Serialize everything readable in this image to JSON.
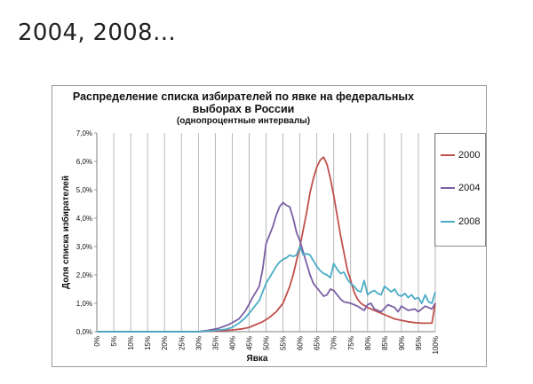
{
  "slide": {
    "title": "2004, 2008…"
  },
  "chart_data": {
    "type": "line",
    "title": "Распределение списка избирателей по явке на федеральных выборах в России",
    "title_line1": "Распределение списка избирателей по явке на федеральных",
    "title_line2": "выборах в России",
    "subtitle": "(однопроцентные интервалы)",
    "xlabel": "Явка",
    "ylabel": "Доля списка избирателей",
    "x_ticks": [
      "0%",
      "5%",
      "10%",
      "15%",
      "20%",
      "25%",
      "30%",
      "35%",
      "40%",
      "45%",
      "50%",
      "55%",
      "60%",
      "65%",
      "70%",
      "75%",
      "80%",
      "85%",
      "90%",
      "95%",
      "100%"
    ],
    "y_ticks": [
      "0,0%",
      "1,0%",
      "2,0%",
      "3,0%",
      "4,0%",
      "5,0%",
      "6,0%",
      "7,0%"
    ],
    "xlim": [
      0,
      100
    ],
    "ylim": [
      0,
      7
    ],
    "grid": "vertical",
    "legend_position": "right",
    "series": [
      {
        "name": "2000",
        "color": "#c0504d",
        "points": [
          [
            0,
            0
          ],
          [
            30,
            0
          ],
          [
            35,
            0.02
          ],
          [
            40,
            0.06
          ],
          [
            43,
            0.1
          ],
          [
            45,
            0.15
          ],
          [
            47,
            0.25
          ],
          [
            49,
            0.35
          ],
          [
            51,
            0.5
          ],
          [
            53,
            0.7
          ],
          [
            55,
            1.0
          ],
          [
            56,
            1.3
          ],
          [
            57,
            1.6
          ],
          [
            58,
            2.0
          ],
          [
            59,
            2.5
          ],
          [
            60,
            3.0
          ],
          [
            61,
            3.6
          ],
          [
            62,
            4.2
          ],
          [
            63,
            4.9
          ],
          [
            64,
            5.4
          ],
          [
            65,
            5.8
          ],
          [
            66,
            6.05
          ],
          [
            67,
            6.15
          ],
          [
            68,
            5.9
          ],
          [
            69,
            5.4
          ],
          [
            70,
            4.8
          ],
          [
            71,
            4.1
          ],
          [
            72,
            3.4
          ],
          [
            73,
            2.8
          ],
          [
            74,
            2.2
          ],
          [
            75,
            1.8
          ],
          [
            76,
            1.4
          ],
          [
            77,
            1.15
          ],
          [
            78,
            1.0
          ],
          [
            80,
            0.85
          ],
          [
            82,
            0.75
          ],
          [
            84,
            0.65
          ],
          [
            86,
            0.55
          ],
          [
            88,
            0.45
          ],
          [
            90,
            0.4
          ],
          [
            92,
            0.35
          ],
          [
            94,
            0.32
          ],
          [
            96,
            0.3
          ],
          [
            98,
            0.3
          ],
          [
            99,
            0.3
          ],
          [
            100,
            1.0
          ]
        ]
      },
      {
        "name": "2004",
        "color": "#7a5fa3",
        "points": [
          [
            0,
            0
          ],
          [
            30,
            0
          ],
          [
            33,
            0.05
          ],
          [
            36,
            0.12
          ],
          [
            39,
            0.25
          ],
          [
            42,
            0.45
          ],
          [
            44,
            0.75
          ],
          [
            46,
            1.2
          ],
          [
            48,
            1.6
          ],
          [
            49,
            2.2
          ],
          [
            50,
            3.1
          ],
          [
            51,
            3.4
          ],
          [
            52,
            3.7
          ],
          [
            53,
            4.1
          ],
          [
            54,
            4.4
          ],
          [
            55,
            4.55
          ],
          [
            56,
            4.45
          ],
          [
            57,
            4.4
          ],
          [
            58,
            4.0
          ],
          [
            59,
            3.5
          ],
          [
            60,
            3.2
          ],
          [
            61,
            2.8
          ],
          [
            62,
            2.4
          ],
          [
            63,
            2.0
          ],
          [
            64,
            1.7
          ],
          [
            65,
            1.55
          ],
          [
            66,
            1.4
          ],
          [
            67,
            1.25
          ],
          [
            68,
            1.3
          ],
          [
            69,
            1.5
          ],
          [
            70,
            1.45
          ],
          [
            71,
            1.3
          ],
          [
            72,
            1.15
          ],
          [
            73,
            1.05
          ],
          [
            75,
            1.0
          ],
          [
            77,
            0.9
          ],
          [
            79,
            0.75
          ],
          [
            80,
            0.95
          ],
          [
            81,
            1.0
          ],
          [
            82,
            0.8
          ],
          [
            84,
            0.7
          ],
          [
            86,
            0.95
          ],
          [
            88,
            0.85
          ],
          [
            89,
            0.7
          ],
          [
            90,
            0.9
          ],
          [
            92,
            0.75
          ],
          [
            94,
            0.8
          ],
          [
            95,
            0.7
          ],
          [
            97,
            0.9
          ],
          [
            98,
            0.85
          ],
          [
            99,
            0.8
          ],
          [
            100,
            1.0
          ]
        ]
      },
      {
        "name": "2008",
        "color": "#4bacc6",
        "points": [
          [
            0,
            0
          ],
          [
            30,
            0
          ],
          [
            34,
            0.03
          ],
          [
            38,
            0.08
          ],
          [
            40,
            0.15
          ],
          [
            42,
            0.3
          ],
          [
            44,
            0.5
          ],
          [
            46,
            0.8
          ],
          [
            48,
            1.1
          ],
          [
            49,
            1.4
          ],
          [
            50,
            1.7
          ],
          [
            51,
            1.9
          ],
          [
            52,
            2.1
          ],
          [
            53,
            2.3
          ],
          [
            54,
            2.45
          ],
          [
            55,
            2.55
          ],
          [
            56,
            2.6
          ],
          [
            57,
            2.7
          ],
          [
            58,
            2.65
          ],
          [
            59,
            2.7
          ],
          [
            60,
            3.0
          ],
          [
            61,
            2.7
          ],
          [
            62,
            2.75
          ],
          [
            63,
            2.7
          ],
          [
            64,
            2.5
          ],
          [
            65,
            2.3
          ],
          [
            66,
            2.15
          ],
          [
            67,
            2.05
          ],
          [
            68,
            2.0
          ],
          [
            69,
            1.9
          ],
          [
            70,
            2.4
          ],
          [
            71,
            2.2
          ],
          [
            72,
            2.05
          ],
          [
            73,
            2.1
          ],
          [
            74,
            1.85
          ],
          [
            75,
            1.7
          ],
          [
            76,
            1.6
          ],
          [
            77,
            1.45
          ],
          [
            78,
            1.4
          ],
          [
            79,
            1.8
          ],
          [
            80,
            1.3
          ],
          [
            81,
            1.4
          ],
          [
            82,
            1.45
          ],
          [
            83,
            1.35
          ],
          [
            84,
            1.3
          ],
          [
            85,
            1.6
          ],
          [
            86,
            1.5
          ],
          [
            87,
            1.4
          ],
          [
            88,
            1.5
          ],
          [
            89,
            1.3
          ],
          [
            90,
            1.25
          ],
          [
            91,
            1.35
          ],
          [
            92,
            1.2
          ],
          [
            93,
            1.3
          ],
          [
            94,
            1.15
          ],
          [
            95,
            1.2
          ],
          [
            96,
            1.0
          ],
          [
            97,
            1.3
          ],
          [
            98,
            1.05
          ],
          [
            99,
            1.0
          ],
          [
            100,
            1.4
          ]
        ]
      }
    ]
  }
}
